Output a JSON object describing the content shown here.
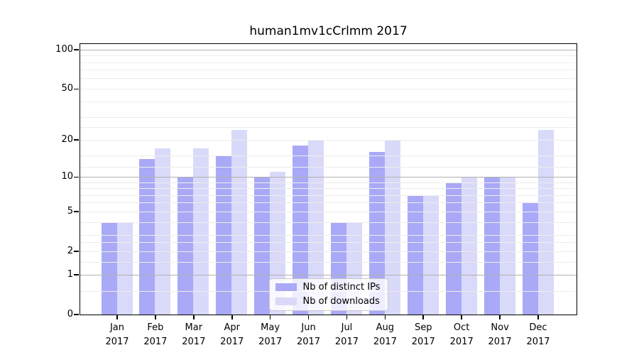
{
  "chart_data": {
    "type": "bar",
    "title": "human1mv1cCrlmm 2017",
    "categories": [
      "Jan",
      "Feb",
      "Mar",
      "Apr",
      "May",
      "Jun",
      "Jul",
      "Aug",
      "Sep",
      "Oct",
      "Nov",
      "Dec"
    ],
    "x_year": "2017",
    "series": [
      {
        "name": "Nb of distinct IPs",
        "color": "#a9a9f7",
        "values": [
          4,
          14,
          10,
          15,
          10,
          18,
          4,
          16,
          7,
          9,
          10,
          6
        ]
      },
      {
        "name": "Nb of downloads",
        "color": "#d9d9fa",
        "values": [
          4,
          17,
          17,
          24,
          11,
          20,
          4,
          20,
          7,
          10,
          10,
          24
        ]
      }
    ],
    "xlabel": "",
    "ylabel": "",
    "ylim": [
      0,
      110.8
    ],
    "scale": "log10(value+1)",
    "y_ticks": [
      0,
      1,
      2,
      5,
      10,
      20,
      50,
      100
    ],
    "gridlines": {
      "major": [
        1,
        10,
        100
      ],
      "minor": [
        0.5,
        1.5,
        2,
        2.5,
        3,
        4,
        5,
        6,
        7,
        8,
        9,
        12,
        15,
        20,
        25,
        30,
        40,
        50,
        60,
        70,
        80,
        90
      ]
    },
    "grid": "on",
    "legend_position": "inside lower-center"
  },
  "colors": {
    "distinct_ips": "#a9a9f7",
    "downloads": "#d9d9fa",
    "grid_major": "#b0b0b0",
    "grid_minor": "#ededed"
  }
}
